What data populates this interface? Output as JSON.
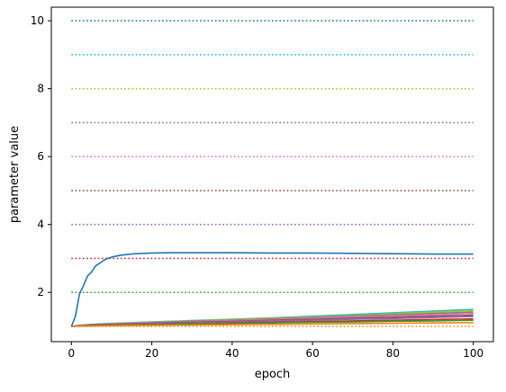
{
  "chart_data": {
    "type": "line",
    "title": "",
    "xlabel": "epoch",
    "ylabel": "parameter value",
    "xlim": [
      -5,
      105
    ],
    "ylim": [
      0.55,
      10.4
    ],
    "xticks": [
      0,
      20,
      40,
      60,
      80,
      100
    ],
    "yticks": [
      2,
      4,
      6,
      8,
      10
    ],
    "grid": false,
    "legend": "none",
    "reference_lines": {
      "style": "dotted",
      "x_range": [
        0,
        100
      ],
      "items": [
        {
          "y": 1,
          "color": "#ff7f0e"
        },
        {
          "y": 2,
          "color": "#2ca02c"
        },
        {
          "y": 3,
          "color": "#d62728"
        },
        {
          "y": 4,
          "color": "#9467bd"
        },
        {
          "y": 5,
          "color": "#8c564b"
        },
        {
          "y": 6,
          "color": "#e377c2"
        },
        {
          "y": 7,
          "color": "#7f7f7f"
        },
        {
          "y": 8,
          "color": "#bcbd22"
        },
        {
          "y": 9,
          "color": "#17becf"
        },
        {
          "y": 10,
          "color": "#1f77b4"
        }
      ]
    },
    "series": [
      {
        "color": "#1f77b4",
        "x": [
          0,
          1,
          2,
          3,
          4,
          5,
          6,
          7,
          8,
          9,
          10,
          12,
          14,
          16,
          18,
          20,
          25,
          30,
          40,
          50,
          60,
          70,
          80,
          90,
          100
        ],
        "y": [
          1.0,
          1.3,
          1.95,
          2.2,
          2.48,
          2.6,
          2.78,
          2.86,
          2.94,
          3.0,
          3.04,
          3.09,
          3.12,
          3.14,
          3.15,
          3.16,
          3.17,
          3.17,
          3.17,
          3.16,
          3.16,
          3.15,
          3.14,
          3.13,
          3.13
        ]
      },
      {
        "color": "#17becf",
        "x": [
          0,
          2,
          5,
          10,
          20,
          30,
          40,
          50,
          60,
          70,
          80,
          90,
          100
        ],
        "y": [
          1.0,
          1.03,
          1.06,
          1.09,
          1.13,
          1.17,
          1.21,
          1.25,
          1.3,
          1.35,
          1.4,
          1.45,
          1.5
        ]
      },
      {
        "color": "#bcbd22",
        "x": [
          0,
          2,
          5,
          10,
          20,
          30,
          40,
          50,
          60,
          70,
          80,
          90,
          100
        ],
        "y": [
          1.0,
          1.03,
          1.05,
          1.08,
          1.12,
          1.16,
          1.2,
          1.24,
          1.28,
          1.32,
          1.37,
          1.42,
          1.46
        ]
      },
      {
        "color": "#7f7f7f",
        "x": [
          0,
          2,
          5,
          10,
          20,
          30,
          40,
          50,
          60,
          70,
          80,
          90,
          100
        ],
        "y": [
          1.0,
          1.03,
          1.05,
          1.07,
          1.11,
          1.15,
          1.18,
          1.22,
          1.26,
          1.3,
          1.34,
          1.38,
          1.42
        ]
      },
      {
        "color": "#e377c2",
        "x": [
          0,
          2,
          5,
          10,
          20,
          30,
          40,
          50,
          60,
          70,
          80,
          90,
          100
        ],
        "y": [
          1.0,
          1.02,
          1.04,
          1.07,
          1.1,
          1.13,
          1.17,
          1.2,
          1.24,
          1.27,
          1.31,
          1.34,
          1.38
        ]
      },
      {
        "color": "#8c564b",
        "x": [
          0,
          2,
          5,
          10,
          20,
          30,
          40,
          50,
          60,
          70,
          80,
          90,
          100
        ],
        "y": [
          1.0,
          1.02,
          1.04,
          1.06,
          1.09,
          1.12,
          1.15,
          1.18,
          1.21,
          1.24,
          1.27,
          1.3,
          1.33
        ]
      },
      {
        "color": "#9467bd",
        "x": [
          0,
          2,
          5,
          10,
          20,
          30,
          40,
          50,
          60,
          70,
          80,
          90,
          100
        ],
        "y": [
          1.0,
          1.02,
          1.03,
          1.05,
          1.08,
          1.1,
          1.13,
          1.16,
          1.18,
          1.21,
          1.23,
          1.26,
          1.29
        ]
      },
      {
        "color": "#d62728",
        "x": [
          0,
          2,
          5,
          10,
          20,
          30,
          40,
          50,
          60,
          70,
          80,
          90,
          100
        ],
        "y": [
          1.0,
          1.01,
          1.03,
          1.04,
          1.06,
          1.08,
          1.1,
          1.12,
          1.14,
          1.16,
          1.18,
          1.2,
          1.22
        ]
      },
      {
        "color": "#2ca02c",
        "x": [
          0,
          2,
          5,
          10,
          20,
          30,
          40,
          50,
          60,
          70,
          80,
          90,
          100
        ],
        "y": [
          1.0,
          1.01,
          1.02,
          1.03,
          1.05,
          1.07,
          1.08,
          1.1,
          1.12,
          1.13,
          1.15,
          1.16,
          1.18
        ]
      },
      {
        "color": "#ff7f0e",
        "x": [
          0,
          2,
          5,
          10,
          20,
          30,
          40,
          50,
          60,
          70,
          80,
          90,
          100
        ],
        "y": [
          1.0,
          1.01,
          1.01,
          1.02,
          1.03,
          1.04,
          1.05,
          1.06,
          1.07,
          1.08,
          1.09,
          1.1,
          1.11
        ]
      }
    ]
  }
}
